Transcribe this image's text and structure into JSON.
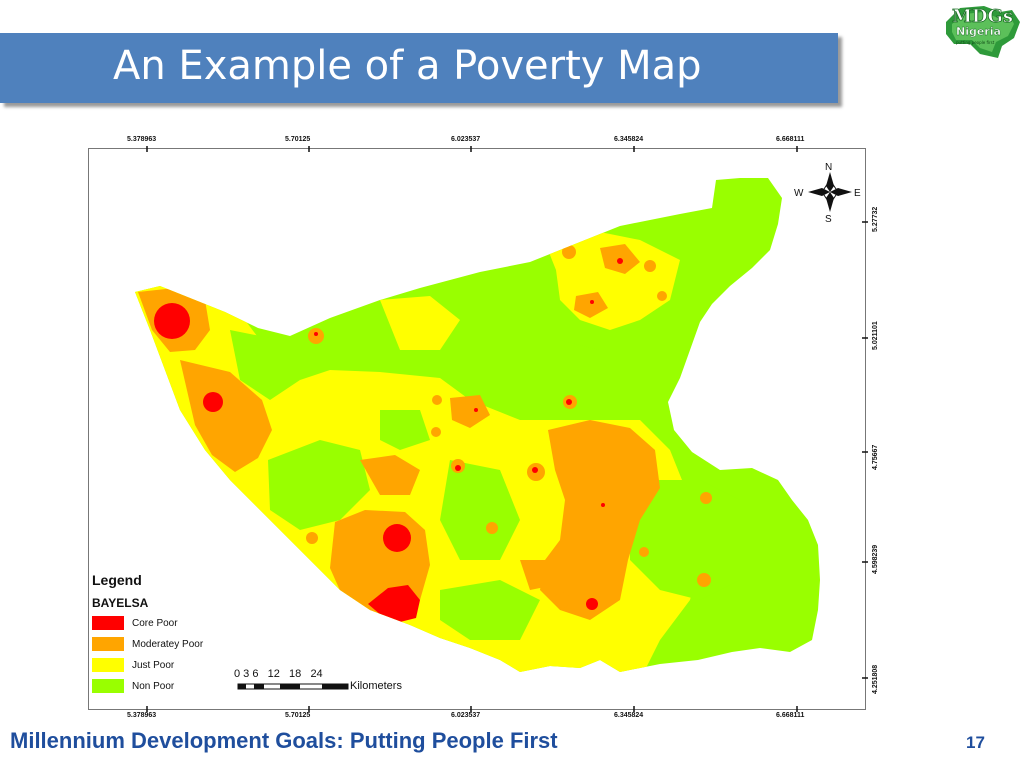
{
  "slide": {
    "title": "An Example of a Poverty Map",
    "footer": "Millennium Development Goals: Putting People First",
    "page_number": "17",
    "logo_text_main": "MDGs",
    "logo_text_sub": "Nigeria",
    "logo_tagline": "putting people first"
  },
  "map": {
    "top_coords": [
      "5.378963",
      "5.70125",
      "6.023537",
      "6.345824",
      "6.668111"
    ],
    "bottom_coords": [
      "5.378963",
      "5.70125",
      "6.023537",
      "6.345824",
      "6.668111"
    ],
    "right_coords": [
      "5.27732",
      "5.021101",
      "4.75667",
      "4.598239",
      "4.251808"
    ],
    "compass": {
      "n": "N",
      "s": "S",
      "e": "E",
      "w": "W"
    },
    "scale_ticks": "0 3 6   12   18   24",
    "scale_units": "Kilometers"
  },
  "legend": {
    "title": "Legend",
    "subtitle": "BAYELSA",
    "items": [
      {
        "label": "Core Poor",
        "color": "#ff0000"
      },
      {
        "label": "Moderatey Poor",
        "color": "#ffa500"
      },
      {
        "label": "Just Poor",
        "color": "#ffff00"
      },
      {
        "label": "Non Poor",
        "color": "#99ff00"
      }
    ]
  },
  "colors": {
    "title_bar": "#4f81bd",
    "footer_text": "#1f4e9d",
    "core_poor": "#ff0000",
    "moderately_poor": "#ffa500",
    "just_poor": "#ffff00",
    "non_poor": "#99ff00"
  }
}
